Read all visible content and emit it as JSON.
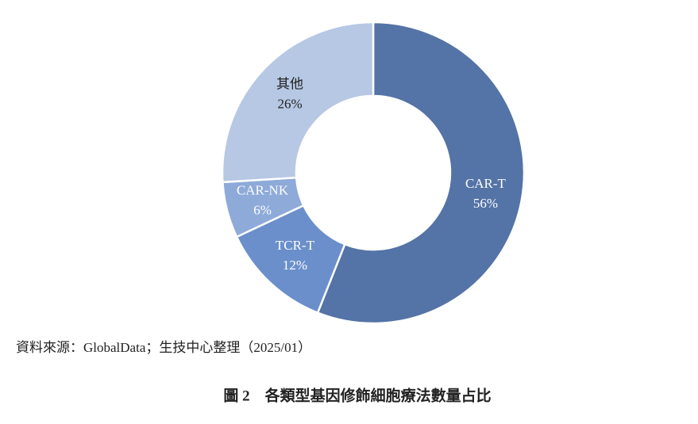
{
  "chart_data": {
    "type": "donut",
    "categories": [
      "CAR-T",
      "TCR-T",
      "CAR-NK",
      "其他"
    ],
    "values": [
      56,
      12,
      6,
      26
    ],
    "value_labels": [
      "56%",
      "12%",
      "6%",
      "26%"
    ],
    "colors": [
      "#5473a6",
      "#6a8fcb",
      "#8eaad9",
      "#b7c8e4"
    ],
    "source": "資料來源：GlobalData；生技中心整理（2025/01）",
    "caption": "圖 2　各類型基因修飾細胞療法數量占比"
  }
}
